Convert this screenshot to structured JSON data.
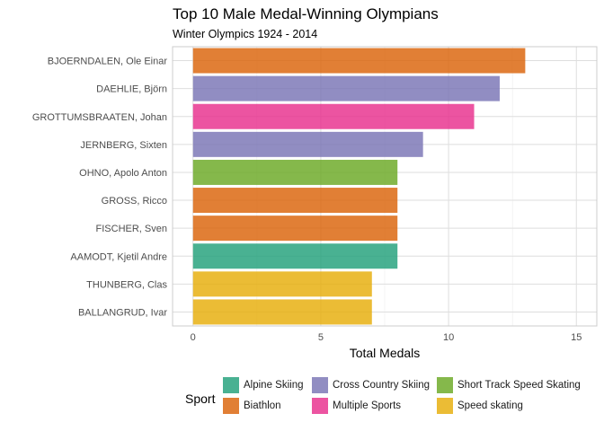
{
  "chart_data": {
    "type": "bar",
    "orientation": "horizontal",
    "title": "Top 10 Male Medal-Winning Olympians",
    "subtitle": "Winter Olympics 1924 - 2014",
    "xlabel": "Total Medals",
    "ylabel": "",
    "xlim": [
      -0.8,
      15.8
    ],
    "x_ticks": [
      0,
      5,
      10,
      15
    ],
    "grid": true,
    "legend_title": "Sport",
    "legend_position": "bottom",
    "categories": [
      "BJOERNDALEN, Ole Einar",
      "DAEHLIE, Björn",
      "GROTTUMSBRAATEN, Johan",
      "JERNBERG, Sixten",
      "OHNO, Apolo Anton",
      "GROSS, Ricco",
      "FISCHER, Sven",
      "AAMODT, Kjetil Andre",
      "THUNBERG, Clas",
      "BALLANGRUD, Ivar"
    ],
    "values": [
      13,
      12,
      11,
      9,
      8,
      8,
      8,
      8,
      7,
      7
    ],
    "sports": [
      "Biathlon",
      "Cross Country Skiing",
      "Multiple Sports",
      "Cross Country Skiing",
      "Short Track Speed Skating",
      "Biathlon",
      "Biathlon",
      "Alpine Skiing",
      "Speed skating",
      "Speed skating"
    ],
    "legend": [
      {
        "name": "Alpine Skiing",
        "color": "#1b9e77"
      },
      {
        "name": "Biathlon",
        "color": "#d95f02"
      },
      {
        "name": "Cross Country Skiing",
        "color": "#7570b3"
      },
      {
        "name": "Multiple Sports",
        "color": "#e7298a"
      },
      {
        "name": "Short Track Speed Skating",
        "color": "#66a61e"
      },
      {
        "name": "Speed skating",
        "color": "#e6ab02"
      }
    ]
  }
}
